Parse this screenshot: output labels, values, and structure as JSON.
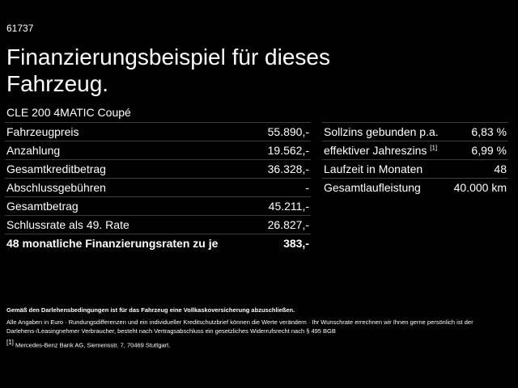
{
  "header": {
    "id": "61737",
    "title": "Finanzierungsbeispiel für dieses Fahrzeug.",
    "model": "CLE 200 4MATIC Coupé"
  },
  "left_table": {
    "rows": [
      {
        "label": "Fahrzeugpreis",
        "value": "55.890,-"
      },
      {
        "label": "Anzahlung",
        "value": "19.562,-"
      },
      {
        "label": "Gesamtkreditbetrag",
        "value": "36.328,-"
      },
      {
        "label": "Abschlussgebühren",
        "value": "-"
      },
      {
        "label": "Gesamtbetrag",
        "value": "45.211,-"
      },
      {
        "label": "Schlussrate als 49. Rate",
        "value": "26.827,-"
      },
      {
        "label": "48 monatliche Finanzierungsraten zu je",
        "value": "383,-"
      }
    ]
  },
  "right_table": {
    "rows": [
      {
        "label": "Sollzins gebunden p.a.",
        "value": "6,83 %"
      },
      {
        "label": "effektiver Jahreszins",
        "note": "[1]",
        "value": "6,99 %"
      },
      {
        "label": "Laufzeit in Monaten",
        "value": "48"
      },
      {
        "label": "Gesamtlaufleistung",
        "value": "40.000 km"
      }
    ]
  },
  "footer": {
    "insurance": "Gemäß den Darlehensbedingungen ist für das Fahrzeug eine Vollkaskoversicherung abzuschließen.",
    "notes": "Alle Angaben in Euro · Rundungsdifferenzen und ein individueller Kreditschutzbrief können die Werte verändern · Ihr Wunschrate errechnen wir Ihnen gerne persönlich ist der Darlehens-/Leasingnehmer Verbraucher, besteht nach Vertragsabschluss ein gesetzliches Widerrufsrecht nach § 495 BGB",
    "source_marker": "[1]",
    "source": "Mercedes-Benz Bank AG, Siemensstr. 7, 70469 Stuttgart."
  }
}
